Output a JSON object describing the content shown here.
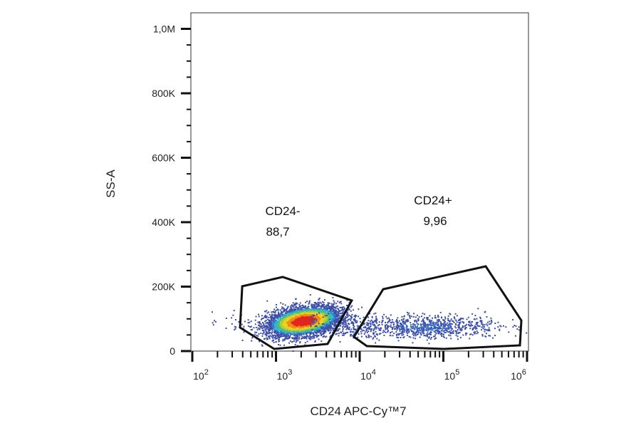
{
  "chart_data": {
    "type": "scatter",
    "xlabel": "CD24 APC-Cy™7",
    "ylabel": "SS-A",
    "xscale": "log",
    "xlim": [
      100,
      1000000
    ],
    "ylim": [
      0,
      1050000
    ],
    "x_ticks": [
      {
        "value": 100,
        "base": "10",
        "exp": "2"
      },
      {
        "value": 1000,
        "base": "10",
        "exp": "3"
      },
      {
        "value": 10000,
        "base": "10",
        "exp": "4"
      },
      {
        "value": 100000,
        "base": "10",
        "exp": "5"
      },
      {
        "value": 1000000,
        "base": "10",
        "exp": "6"
      }
    ],
    "y_ticks": [
      {
        "value": 0,
        "label": "0"
      },
      {
        "value": 200000,
        "label": "200K"
      },
      {
        "value": 400000,
        "label": "400K"
      },
      {
        "value": 600000,
        "label": "600K"
      },
      {
        "value": 800000,
        "label": "800K"
      },
      {
        "value": 1000000,
        "label": "1,0M"
      }
    ],
    "grid": false,
    "coloring": "density (blue low → red high)",
    "populations": [
      {
        "center_x": 2100,
        "center_y": 95000,
        "log_sd_x": 0.22,
        "sd_y": 22000,
        "share": 0.887
      },
      {
        "center_x": 60000,
        "center_y": 78000,
        "log_sd_x": 0.45,
        "sd_y": 17000,
        "share": 0.0996
      }
    ],
    "gates": [
      {
        "name": "CD24-",
        "value": "88,7",
        "vertices": [
          [
            395,
            201000
          ],
          [
            1205,
            230000
          ],
          [
            8050,
            157000
          ],
          [
            4140,
            22000
          ],
          [
            953,
            6600
          ],
          [
            372,
            73000
          ]
        ]
      },
      {
        "name": "CD24+",
        "value": "9,96",
        "vertices": [
          [
            19100,
            192000
          ],
          [
            321000,
            263000
          ],
          [
            855000,
            95000
          ],
          [
            822000,
            17700
          ],
          [
            101000,
            6600
          ],
          [
            12200,
            15500
          ],
          [
            8550,
            44000
          ]
        ]
      }
    ]
  }
}
